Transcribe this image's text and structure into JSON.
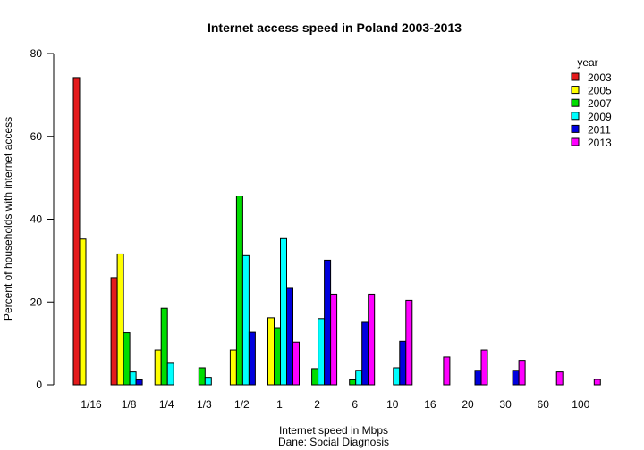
{
  "chart_data": {
    "type": "bar",
    "title": "Internet access speed in Poland 2003-2013",
    "xlabel": "Internet speed in Mbps",
    "caption": "Dane: Social Diagnosis",
    "ylabel": "Percent of households with internet access",
    "ylim": [
      0,
      80
    ],
    "yticks": [
      0,
      20,
      40,
      60,
      80
    ],
    "categories": [
      "1/16",
      "1/8",
      "1/4",
      "1/3",
      "1/2",
      "1",
      "2",
      "6",
      "10",
      "16",
      "20",
      "30",
      "60",
      "100"
    ],
    "legend_title": "year",
    "legend_position": "top-right",
    "series": [
      {
        "name": "2003",
        "color": "#e41a1c",
        "values": [
          74.2,
          25.9,
          0,
          0,
          0,
          0,
          0,
          0,
          0,
          0,
          0,
          0,
          0,
          0
        ]
      },
      {
        "name": "2005",
        "color": "#ffff00",
        "values": [
          35.2,
          31.6,
          8.4,
          0,
          8.4,
          16.2,
          0,
          0,
          0,
          0,
          0,
          0,
          0,
          0
        ]
      },
      {
        "name": "2007",
        "color": "#00dd00",
        "values": [
          0,
          12.6,
          18.5,
          4.1,
          45.6,
          13.8,
          3.9,
          1.2,
          0,
          0,
          0,
          0,
          0,
          0
        ]
      },
      {
        "name": "2009",
        "color": "#00ffff",
        "values": [
          0,
          3.1,
          5.2,
          1.8,
          31.2,
          35.3,
          16.0,
          3.5,
          4.1,
          0,
          0,
          0,
          0,
          0
        ]
      },
      {
        "name": "2011",
        "color": "#0000dd",
        "values": [
          0,
          1.2,
          0,
          0,
          12.7,
          23.3,
          30.1,
          15.1,
          10.5,
          0,
          3.5,
          3.5,
          0,
          0
        ]
      },
      {
        "name": "2013",
        "color": "#ff00ff",
        "values": [
          0,
          0,
          0,
          0,
          0,
          10.3,
          21.9,
          21.9,
          20.4,
          6.7,
          8.4,
          5.9,
          3.1,
          1.3
        ]
      }
    ]
  }
}
